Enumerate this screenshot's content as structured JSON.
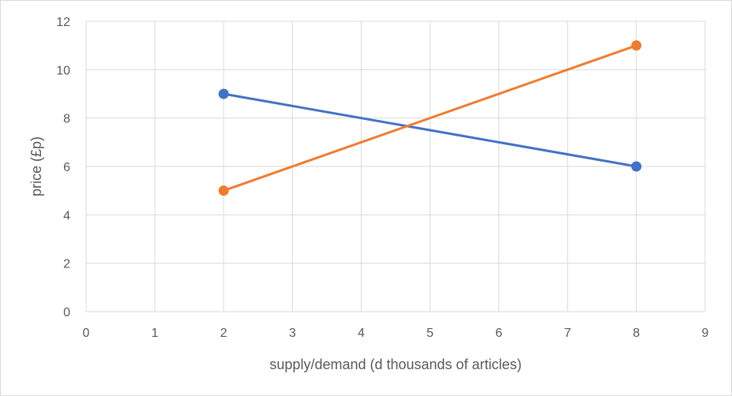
{
  "chart_data": {
    "type": "line",
    "title": "",
    "xlabel": "supply/demand (d thousands of articles)",
    "ylabel": "price (£p)",
    "xlim": [
      0,
      9
    ],
    "ylim": [
      0,
      12
    ],
    "x_ticks": [
      "0",
      "1",
      "2",
      "3",
      "4",
      "5",
      "6",
      "7",
      "8",
      "9"
    ],
    "y_ticks": [
      "0",
      "2",
      "4",
      "6",
      "8",
      "10",
      "12"
    ],
    "grid": true,
    "legend": "none",
    "series": [
      {
        "color": "#4472c4",
        "points": [
          {
            "x": 2,
            "y": 9
          },
          {
            "x": 8,
            "y": 6
          }
        ]
      },
      {
        "color": "#ed7d31",
        "points": [
          {
            "x": 2,
            "y": 5
          },
          {
            "x": 8,
            "y": 11
          }
        ]
      }
    ]
  }
}
